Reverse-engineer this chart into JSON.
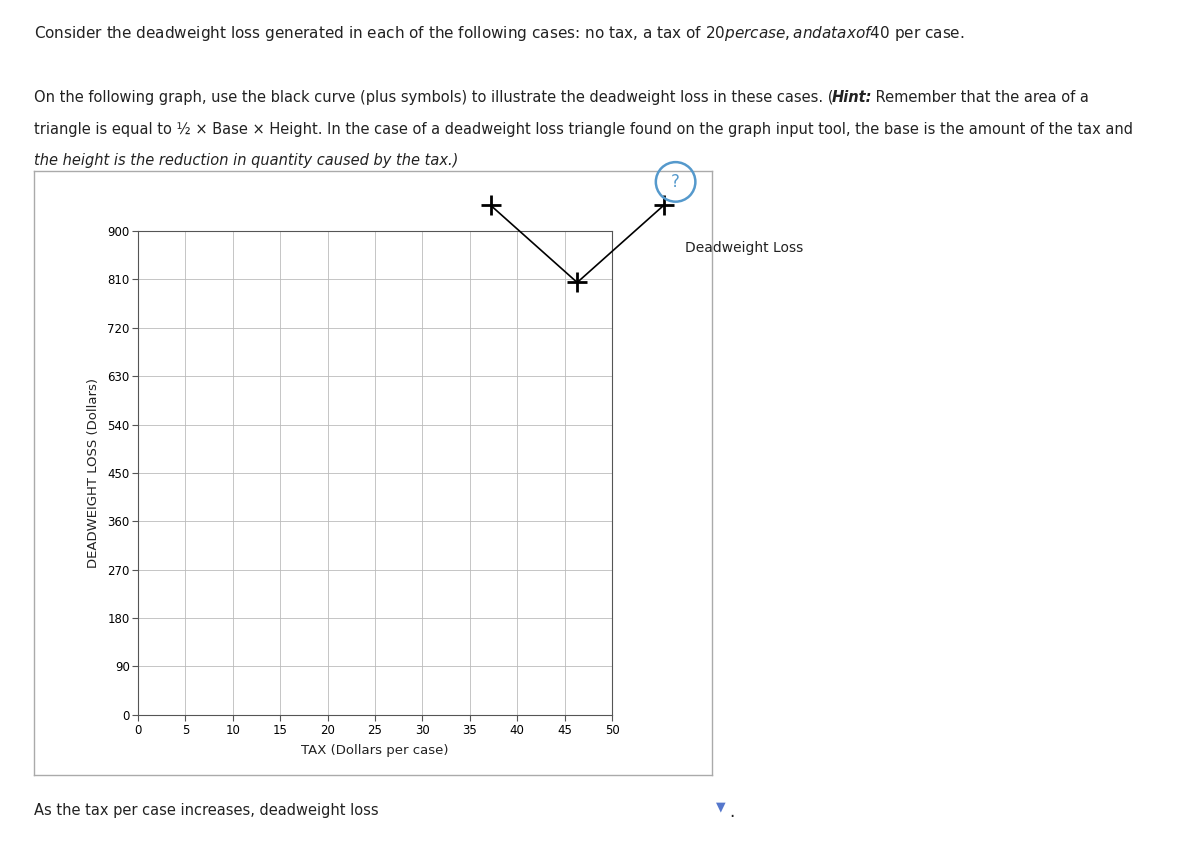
{
  "title_line1": "Consider the deadweight loss generated in each of the following cases: no tax, a tax of $20 per case, and a tax of $40 per case.",
  "sub_line1": "On the following graph, use the black curve (plus symbols) to illustrate the deadweight loss in these cases. (Hint: Remember that the area of a",
  "sub_line2": "triangle is equal to ½ × Base × Height. In the case of a deadweight loss triangle found on the graph input tool, the base is the amount of the tax and",
  "sub_line3": "the height is the reduction in quantity caused by the tax.)",
  "xlabel": "TAX (Dollars per case)",
  "ylabel": "DEADWEIGHT LOSS (Dollars)",
  "xlim": [
    0,
    50
  ],
  "ylim": [
    0,
    900
  ],
  "xticks": [
    0,
    5,
    10,
    15,
    20,
    25,
    30,
    35,
    40,
    45,
    50
  ],
  "yticks": [
    0,
    90,
    180,
    270,
    360,
    450,
    540,
    630,
    720,
    810,
    900
  ],
  "legend_label": "Deadweight Loss",
  "line_color": "#000000",
  "background_color": "#ffffff",
  "plot_bg_color": "#ffffff",
  "grid_color": "#bbbbbb",
  "bottom_text": "As the tax per case increases, deadweight loss",
  "outer_box_color": "#aaaaaa",
  "question_circle_color": "#5599cc"
}
